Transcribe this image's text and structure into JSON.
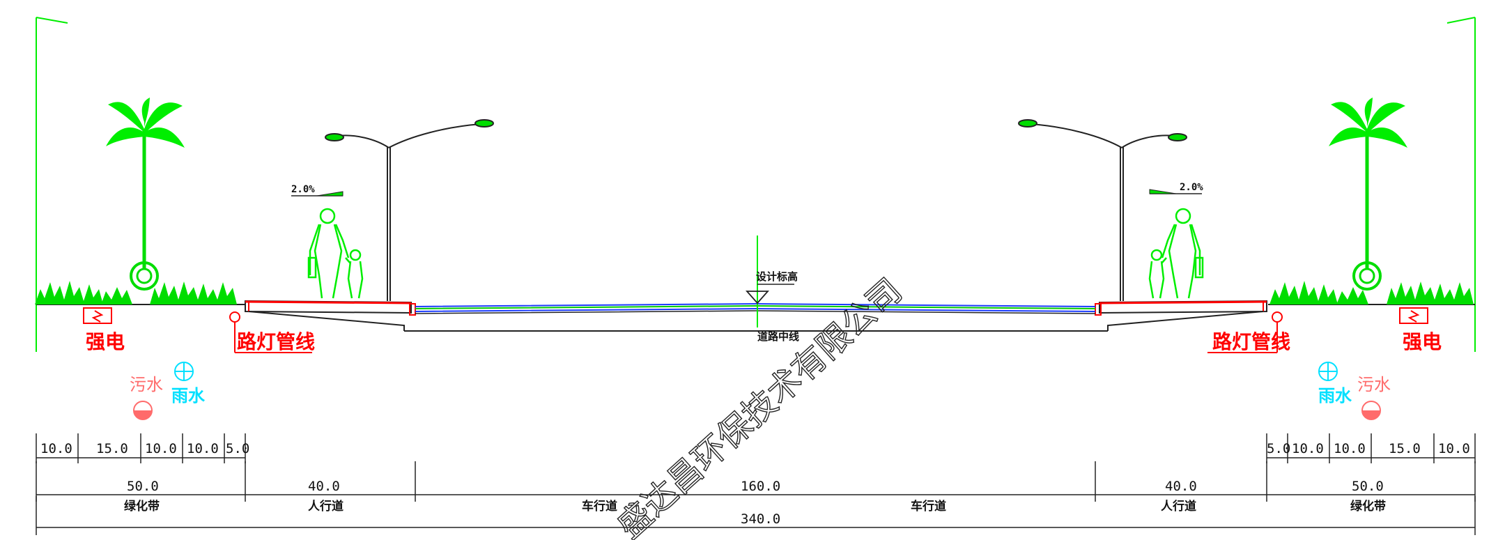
{
  "labels": {
    "design_elevation": "设计标高",
    "centerline": "道路中线",
    "slope_left": "2.0%",
    "slope_right": "2.0%",
    "strong_power": "强电",
    "street_light_pipe": "路灯管线",
    "sewage": "污水",
    "rainwater": "雨水"
  },
  "dims_top_left": [
    "10.0",
    "15.0",
    "10.0",
    "10.0",
    "5.0"
  ],
  "dims_top_right": [
    "5.0",
    "10.0",
    "10.0",
    "15.0",
    "10.0"
  ],
  "dims_mid": {
    "green_left": "50.0",
    "sidewalk_left": "40.0",
    "roadway": "160.0",
    "sidewalk_right": "40.0",
    "green_right": "50.0"
  },
  "zones": {
    "green_left": "绿化带",
    "sidewalk_left": "人行道",
    "lane_left": "车行道",
    "lane_right": "车行道",
    "sidewalk_right": "人行道",
    "green_right": "绿化带"
  },
  "total_width": "340.0",
  "watermark": "盛达昌环保技术有限公司",
  "colors": {
    "green": "#00ee00",
    "red": "#ff0000",
    "blue": "#1a3cff",
    "cyan": "#00e0ff",
    "pink": "#ff6b6b"
  }
}
